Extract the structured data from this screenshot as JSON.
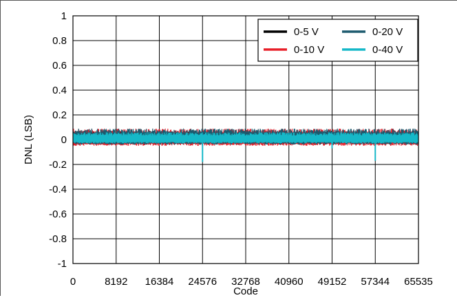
{
  "chart_data": {
    "type": "line",
    "title": "",
    "xlabel": "Code",
    "ylabel": "DNL (LSB)",
    "xlim": [
      0,
      65535
    ],
    "ylim": [
      -1,
      1
    ],
    "x_ticks": [
      0,
      8192,
      16384,
      24576,
      32768,
      40960,
      49152,
      57344,
      65535
    ],
    "y_ticks": [
      1,
      0.8,
      0.6,
      0.4,
      0.2,
      0,
      -0.2,
      -0.4,
      -0.6,
      -0.8,
      -1
    ],
    "y_tick_labels": [
      "1",
      "0.8",
      "0.6",
      "0.4",
      "0.2",
      "0",
      "-0.2",
      "-0.4",
      "-0.6",
      "-0.8",
      "-1"
    ],
    "grid": true,
    "legend_position": "top-right",
    "series": [
      {
        "name": "0-5 V",
        "color": "#000000",
        "band": [
          -0.04,
          0.07
        ]
      },
      {
        "name": "0-10 V",
        "color": "#e8202a",
        "band": [
          -0.05,
          0.09
        ]
      },
      {
        "name": "0-20 V",
        "color": "#1c5a6e",
        "band": [
          -0.04,
          0.09
        ]
      },
      {
        "name": "0-40 V",
        "color": "#16b8c8",
        "band": [
          -0.03,
          0.06
        ],
        "spikes": [
          {
            "x": 24576,
            "y": -0.18
          },
          {
            "x": 57344,
            "y": -0.17
          },
          {
            "x": 49152,
            "y": -0.07
          }
        ]
      }
    ]
  }
}
